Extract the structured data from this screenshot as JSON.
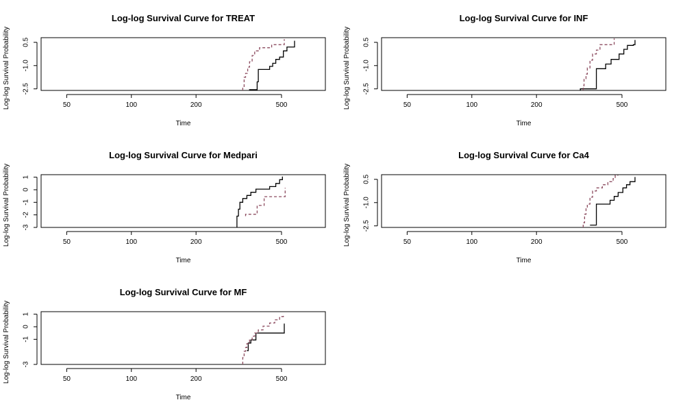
{
  "colors": {
    "group1": "#000000",
    "group2": "#8B4A5E",
    "axis": "#000000",
    "background": "#ffffff"
  },
  "chart_data": [
    {
      "type": "line",
      "title": "Log-log Survival Curve for TREAT",
      "xlabel": "Time",
      "ylabel": "Log-log Survival Probability",
      "xscale": "log",
      "xlim": [
        38,
        800
      ],
      "ylim": [
        -2.6,
        0.8
      ],
      "xticks": [
        {
          "v": 50,
          "label": "50"
        },
        {
          "v": 100,
          "label": "100"
        },
        {
          "v": 200,
          "label": "200"
        },
        {
          "v": 500,
          "label": "500"
        }
      ],
      "yticks": [
        {
          "v": 0.5,
          "label": "0.5"
        },
        {
          "v": -1.0,
          "label": "-1.0"
        },
        {
          "v": -2.5,
          "label": "-2.5"
        }
      ],
      "series": [
        {
          "style": "solid",
          "x": [
            355,
            355,
            385,
            390,
            420,
            440,
            455,
            470,
            490,
            510,
            530,
            570,
            575
          ],
          "y": [
            -2.6,
            -2.55,
            -2.05,
            -1.25,
            -1.25,
            -1.05,
            -0.85,
            -0.6,
            -0.45,
            -0.05,
            0.2,
            0.2,
            0.6
          ]
        },
        {
          "style": "dashed",
          "x": [
            330,
            330,
            335,
            340,
            348,
            355,
            365,
            375,
            395,
            430,
            450,
            470,
            505,
            515
          ],
          "y": [
            -2.6,
            -2.35,
            -1.75,
            -1.5,
            -1.1,
            -0.75,
            -0.35,
            -0.05,
            0.15,
            0.15,
            0.35,
            0.35,
            0.35,
            0.7
          ]
        }
      ]
    },
    {
      "type": "line",
      "title": "Log-log Survival Curve for INF",
      "xlabel": "Time",
      "ylabel": "Log-log Survival Probability",
      "xscale": "log",
      "xlim": [
        38,
        800
      ],
      "ylim": [
        -2.6,
        0.8
      ],
      "xticks": [
        {
          "v": 50,
          "label": "50"
        },
        {
          "v": 100,
          "label": "100"
        },
        {
          "v": 200,
          "label": "200"
        },
        {
          "v": 500,
          "label": "500"
        }
      ],
      "yticks": [
        {
          "v": 0.5,
          "label": "0.5"
        },
        {
          "v": -1.0,
          "label": "-1.0"
        },
        {
          "v": -2.5,
          "label": "-2.5"
        }
      ],
      "series": [
        {
          "style": "solid",
          "x": [
            320,
            320,
            375,
            380,
            420,
            445,
            485,
            510,
            530,
            565,
            575
          ],
          "y": [
            -2.6,
            -2.5,
            -2.5,
            -1.2,
            -0.9,
            -0.6,
            -0.25,
            0.05,
            0.3,
            0.35,
            0.65
          ]
        },
        {
          "style": "dashed",
          "x": [
            330,
            330,
            333,
            340,
            345,
            355,
            365,
            380,
            395,
            420,
            455,
            460
          ],
          "y": [
            -2.6,
            -2.3,
            -1.85,
            -1.55,
            -1.15,
            -0.65,
            -0.25,
            0.0,
            0.35,
            0.35,
            0.35,
            0.75
          ]
        }
      ]
    },
    {
      "type": "line",
      "title": "Log-log Survival Curve for Medpari",
      "xlabel": "Time",
      "ylabel": "Log-log Survival Probability",
      "xscale": "log",
      "xlim": [
        38,
        800
      ],
      "ylim": [
        -3,
        1.2
      ],
      "xticks": [
        {
          "v": 50,
          "label": "50"
        },
        {
          "v": 100,
          "label": "100"
        },
        {
          "v": 200,
          "label": "200"
        },
        {
          "v": 500,
          "label": "500"
        }
      ],
      "yticks": [
        {
          "v": 1,
          "label": "1"
        },
        {
          "v": 0,
          "label": "0"
        },
        {
          "v": -1,
          "label": "-1"
        },
        {
          "v": -2,
          "label": "-2"
        },
        {
          "v": -3,
          "label": "-3"
        }
      ],
      "series": [
        {
          "style": "solid",
          "x": [
            310,
            310,
            315,
            320,
            330,
            345,
            360,
            380,
            440,
            470,
            490,
            505
          ],
          "y": [
            -3,
            -2.1,
            -1.55,
            -1.0,
            -0.7,
            -0.45,
            -0.2,
            0.05,
            0.25,
            0.5,
            0.8,
            1.05
          ]
        },
        {
          "style": "dashed",
          "x": [
            340,
            340,
            380,
            385,
            405,
            415,
            440,
            505,
            520
          ],
          "y": [
            -2.1,
            -1.95,
            -1.95,
            -1.25,
            -1.25,
            -0.55,
            -0.55,
            -0.55,
            0.15
          ]
        }
      ]
    },
    {
      "type": "line",
      "title": "Log-log Survival Curve for Ca4",
      "xlabel": "Time",
      "ylabel": "Log-log Survival Probability",
      "xscale": "log",
      "xlim": [
        38,
        800
      ],
      "ylim": [
        -2.6,
        0.8
      ],
      "xticks": [
        {
          "v": 50,
          "label": "50"
        },
        {
          "v": 100,
          "label": "100"
        },
        {
          "v": 200,
          "label": "200"
        },
        {
          "v": 500,
          "label": "500"
        }
      ],
      "yticks": [
        {
          "v": 0.5,
          "label": "0.5"
        },
        {
          "v": -1.0,
          "label": "-1.0"
        },
        {
          "v": -2.5,
          "label": "-2.5"
        }
      ],
      "series": [
        {
          "style": "solid",
          "x": [
            355,
            355,
            375,
            380,
            430,
            440,
            460,
            480,
            505,
            525,
            545,
            575
          ],
          "y": [
            -2.45,
            -2.45,
            -2.45,
            -1.1,
            -1.1,
            -0.85,
            -0.6,
            -0.35,
            -0.05,
            0.15,
            0.35,
            0.65
          ]
        },
        {
          "style": "dashed",
          "x": [
            330,
            330,
            335,
            340,
            345,
            355,
            365,
            380,
            405,
            430,
            455,
            465,
            480
          ],
          "y": [
            -2.6,
            -2.3,
            -1.75,
            -1.4,
            -1.1,
            -0.65,
            -0.25,
            -0.05,
            0.15,
            0.35,
            0.55,
            0.75,
            0.75
          ]
        }
      ]
    },
    {
      "type": "line",
      "title": "Log-log Survival Curve for MF",
      "xlabel": "Time",
      "ylabel": "Log-log Survival Probability",
      "xscale": "log",
      "xlim": [
        38,
        800
      ],
      "ylim": [
        -3,
        1.2
      ],
      "xticks": [
        {
          "v": 50,
          "label": "50"
        },
        {
          "v": 100,
          "label": "100"
        },
        {
          "v": 200,
          "label": "200"
        },
        {
          "v": 500,
          "label": "500"
        }
      ],
      "yticks": [
        {
          "v": 1,
          "label": "1"
        },
        {
          "v": 0,
          "label": "0"
        },
        {
          "v": -1,
          "label": "-1"
        },
        {
          "v": -3,
          "label": "-3"
        }
      ],
      "series": [
        {
          "style": "solid",
          "x": [
            345,
            345,
            350,
            360,
            375,
            380,
            400,
            430,
            515,
            515
          ],
          "y": [
            -1.9,
            -1.9,
            -1.3,
            -1.05,
            -1.05,
            -0.5,
            -0.5,
            -0.5,
            -0.5,
            0.25
          ]
        },
        {
          "style": "dashed",
          "x": [
            330,
            330,
            335,
            340,
            345,
            355,
            365,
            375,
            390,
            410,
            440,
            465,
            490,
            510
          ],
          "y": [
            -3,
            -2.45,
            -1.95,
            -1.65,
            -1.35,
            -1.05,
            -0.75,
            -0.5,
            -0.25,
            0.05,
            0.3,
            0.55,
            0.8,
            1.0
          ]
        }
      ]
    }
  ]
}
